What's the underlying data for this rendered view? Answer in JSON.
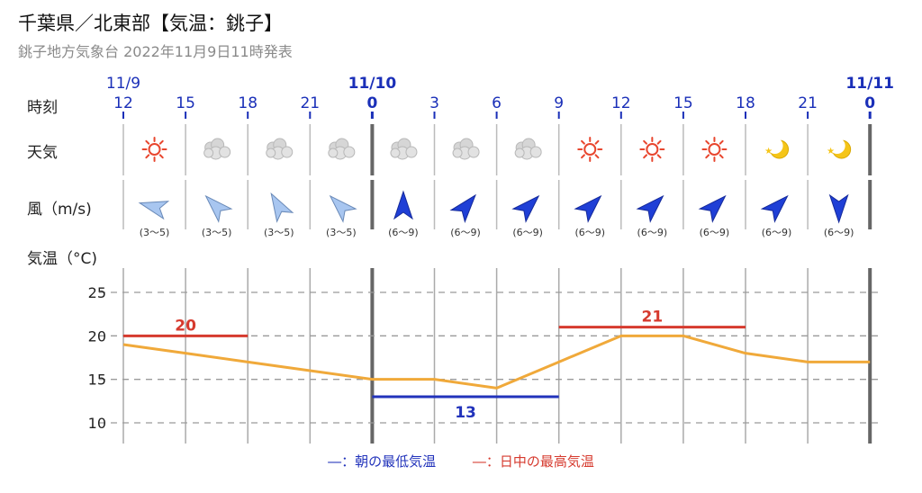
{
  "header": {
    "title": "千葉県／北東部【気温：銚子】",
    "subtitle": "銚子地方気象台 2022年11月9日11時発表"
  },
  "row_labels": {
    "time": "時刻",
    "weather": "天気",
    "wind": "風（m/s)",
    "temperature": "気温（°C)"
  },
  "colors": {
    "text_blue": "#1a2fb8",
    "high_line": "#d63a2e",
    "low_line": "#2233bb",
    "temp_line": "#f0a93a",
    "grid": "#9a9a9a",
    "wind_light": "#a8c6f0",
    "wind_dark": "#1f3fd6"
  },
  "chart_data": {
    "type": "line",
    "dates": [
      {
        "label": "11/9",
        "at_index": 0
      },
      {
        "label": "11/10",
        "at_index": 4
      },
      {
        "label": "11/11",
        "at_index": 12
      }
    ],
    "hours": [
      "12",
      "15",
      "18",
      "21",
      "0",
      "3",
      "6",
      "9",
      "12",
      "15",
      "18",
      "21",
      "0"
    ],
    "bold_hours": [
      4,
      12
    ],
    "weather": [
      "sunny-icon",
      "cloudy-icon",
      "cloudy-icon",
      "cloudy-icon",
      "cloudy-icon",
      "cloudy-icon",
      "cloudy-icon",
      "sunny-icon",
      "sunny-icon",
      "sunny-icon",
      "moon-icon",
      "moon-icon"
    ],
    "wind": [
      {
        "range": "(3～5)",
        "direction_deg": 285,
        "strength": "light"
      },
      {
        "range": "(3～5)",
        "direction_deg": 315,
        "strength": "light"
      },
      {
        "range": "(3～5)",
        "direction_deg": 330,
        "strength": "light"
      },
      {
        "range": "(3～5)",
        "direction_deg": 315,
        "strength": "light"
      },
      {
        "range": "(6～9)",
        "direction_deg": 0,
        "strength": "strong"
      },
      {
        "range": "(6～9)",
        "direction_deg": 40,
        "strength": "strong"
      },
      {
        "range": "(6～9)",
        "direction_deg": 45,
        "strength": "strong"
      },
      {
        "range": "(6～9)",
        "direction_deg": 45,
        "strength": "strong"
      },
      {
        "range": "(6～9)",
        "direction_deg": 45,
        "strength": "strong"
      },
      {
        "range": "(6～9)",
        "direction_deg": 45,
        "strength": "strong"
      },
      {
        "range": "(6～9)",
        "direction_deg": 45,
        "strength": "strong"
      },
      {
        "range": "(6～9)",
        "direction_deg": 180,
        "strength": "strong"
      }
    ],
    "y_ticks": [
      25,
      20,
      15,
      10
    ],
    "ylim": [
      8,
      29
    ],
    "temperature": [
      19,
      18,
      17,
      16,
      15,
      15,
      14,
      17,
      20,
      20,
      18,
      17,
      17
    ],
    "highs": [
      {
        "value": 20,
        "label": "20",
        "from_index": 0,
        "to_index": 2
      },
      {
        "value": 21,
        "label": "21",
        "from_index": 7,
        "to_index": 10
      }
    ],
    "lows": [
      {
        "value": 13,
        "label": "13",
        "from_index": 4,
        "to_index": 7
      }
    ],
    "grid": true
  },
  "legend": {
    "low": "―：朝の最低気温",
    "high": "―：日中の最高気温"
  }
}
